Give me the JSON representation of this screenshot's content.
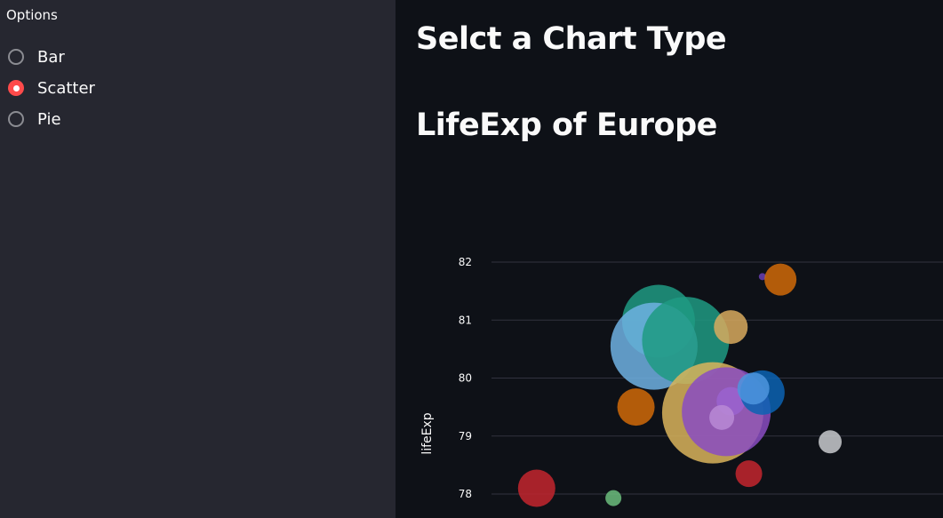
{
  "sidebar": {
    "title": "Options",
    "options": [
      {
        "label": "Bar",
        "selected": false
      },
      {
        "label": "Scatter",
        "selected": true
      },
      {
        "label": "Pie",
        "selected": false
      }
    ]
  },
  "main": {
    "heading": "Selct a Chart Type",
    "subheading": "LifeExp of Europe"
  },
  "colors": {
    "accent": "#ff4b4b",
    "sidebar_bg": "#262730",
    "main_bg": "#0e1117",
    "grid": "#31333f"
  },
  "chart_data": {
    "type": "scatter",
    "title": "",
    "xlabel": "",
    "ylabel": "lifeExp",
    "yticks": [
      78,
      79,
      80,
      81,
      82
    ],
    "ylim": [
      77.7,
      82.3
    ],
    "xlim": [
      0,
      1
    ],
    "grid": true,
    "points": [
      {
        "x": 0.1,
        "y": 78.1,
        "size": 21,
        "color": "#c3262e"
      },
      {
        "x": 0.27,
        "y": 77.93,
        "size": 9,
        "color": "#6bbd7d"
      },
      {
        "x": 0.32,
        "y": 79.5,
        "size": 21,
        "color": "#d06a08"
      },
      {
        "x": 0.37,
        "y": 80.98,
        "size": 41,
        "color": "#1f9a82"
      },
      {
        "x": 0.36,
        "y": 80.55,
        "size": 49,
        "color": "#6fb2e3"
      },
      {
        "x": 0.43,
        "y": 80.65,
        "size": 49,
        "color": "#1f9a82"
      },
      {
        "x": 0.49,
        "y": 79.4,
        "size": 57,
        "color": "#d9b45c"
      },
      {
        "x": 0.52,
        "y": 79.42,
        "size": 50,
        "color": "#8a4cc2"
      },
      {
        "x": 0.53,
        "y": 79.6,
        "size": 16,
        "color": "#9a63d0"
      },
      {
        "x": 0.51,
        "y": 79.32,
        "size": 14,
        "color": "#b98ad6"
      },
      {
        "x": 0.53,
        "y": 80.88,
        "size": 19,
        "color": "#d8aa5e"
      },
      {
        "x": 0.57,
        "y": 78.35,
        "size": 15,
        "color": "#c3262e"
      },
      {
        "x": 0.6,
        "y": 79.75,
        "size": 25,
        "color": "#0a63b3"
      },
      {
        "x": 0.58,
        "y": 79.82,
        "size": 18,
        "color": "#4d95de"
      },
      {
        "x": 0.6,
        "y": 81.75,
        "size": 4,
        "color": "#6a3fb3"
      },
      {
        "x": 0.64,
        "y": 81.7,
        "size": 18,
        "color": "#d06a08"
      },
      {
        "x": 0.75,
        "y": 78.9,
        "size": 13,
        "color": "#c8cace"
      }
    ]
  }
}
